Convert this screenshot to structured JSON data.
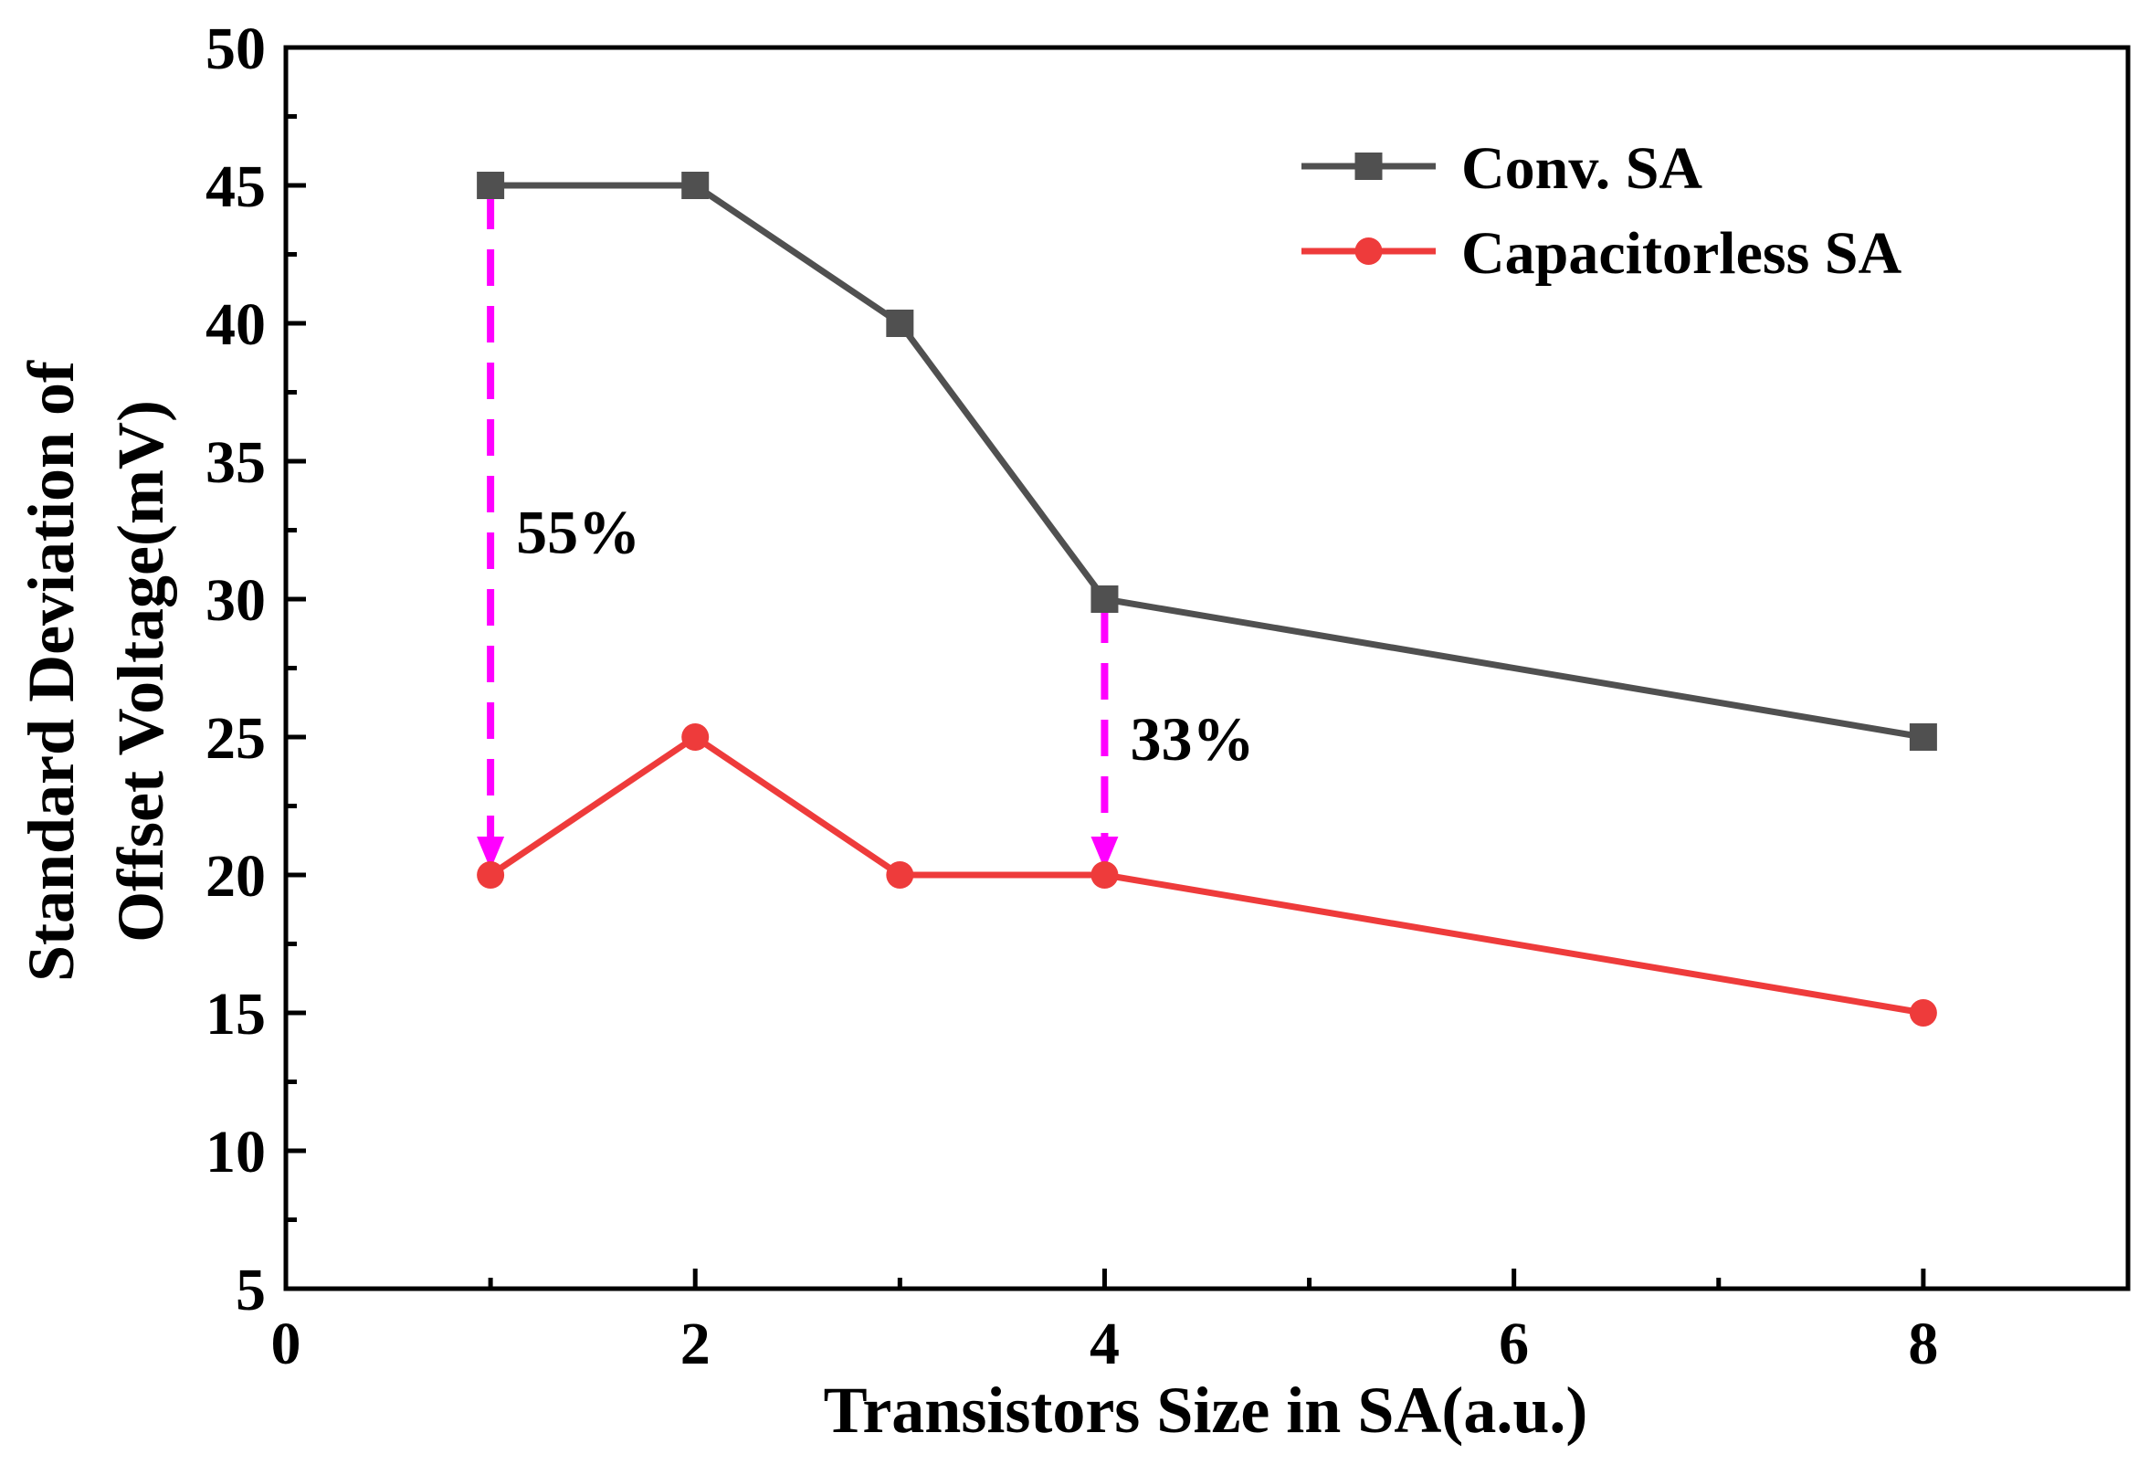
{
  "chart_data": {
    "type": "line",
    "title": "",
    "xlabel": "Transistors Size in SA(a.u.)",
    "ylabel_line1": "Standard Deviation of",
    "ylabel_line2": "Offset Voltage(mV)",
    "xlim": [
      0,
      9
    ],
    "ylim": [
      5,
      50
    ],
    "x_ticks": [
      0,
      2,
      4,
      6,
      8
    ],
    "x_minor_ticks": [
      1,
      3,
      5,
      7,
      9
    ],
    "y_ticks": [
      5,
      10,
      15,
      20,
      25,
      30,
      35,
      40,
      45,
      50
    ],
    "grid": false,
    "legend_position": "top-right",
    "series": [
      {
        "name": "Conv. SA",
        "color": "#505050",
        "marker": "square",
        "x": [
          1,
          2,
          3,
          4,
          8
        ],
        "values": [
          45,
          45,
          40,
          30,
          25
        ]
      },
      {
        "name": "Capacitorless SA",
        "color": "#ee3b3b",
        "marker": "circle",
        "x": [
          1,
          2,
          3,
          4,
          8
        ],
        "values": [
          20,
          25,
          20,
          20,
          15
        ]
      }
    ],
    "annotations": [
      {
        "text": "55%",
        "x": 1,
        "from_y": 45,
        "to_y": 20,
        "color": "#ff00ff"
      },
      {
        "text": "33%",
        "x": 4,
        "from_y": 30,
        "to_y": 20,
        "color": "#ff00ff"
      }
    ]
  }
}
